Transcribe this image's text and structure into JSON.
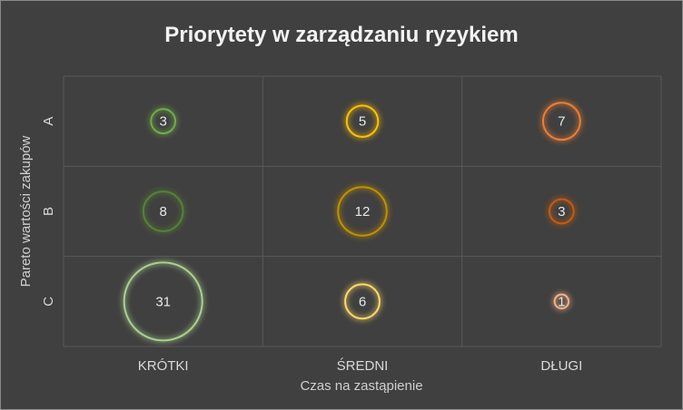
{
  "chart_data": {
    "type": "bubble",
    "title": "Priorytety w zarządzaniu ryzykiem",
    "xlabel": "Czas na zastąpienie",
    "ylabel": "Pareto wartości zakupów",
    "x_categories": [
      "KRÓTKI",
      "ŚREDNI",
      "DŁUGI"
    ],
    "y_categories": [
      "A",
      "B",
      "C"
    ],
    "grid": true,
    "points": [
      {
        "x": "KRÓTKI",
        "y": "A",
        "value": 3,
        "color": "#70ad47"
      },
      {
        "x": "ŚREDNI",
        "y": "A",
        "value": 5,
        "color": "#ffc000"
      },
      {
        "x": "DŁUGI",
        "y": "A",
        "value": 7,
        "color": "#ed7d31"
      },
      {
        "x": "KRÓTKI",
        "y": "B",
        "value": 8,
        "color": "#548235"
      },
      {
        "x": "ŚREDNI",
        "y": "B",
        "value": 12,
        "color": "#bf9000"
      },
      {
        "x": "DŁUGI",
        "y": "B",
        "value": 3,
        "color": "#c55a11"
      },
      {
        "x": "KRÓTKI",
        "y": "C",
        "value": 31,
        "color": "#a9d18e"
      },
      {
        "x": "ŚREDNI",
        "y": "C",
        "value": 6,
        "color": "#ffd966"
      },
      {
        "x": "DŁUGI",
        "y": "C",
        "value": 1,
        "color": "#f4b183"
      }
    ]
  }
}
